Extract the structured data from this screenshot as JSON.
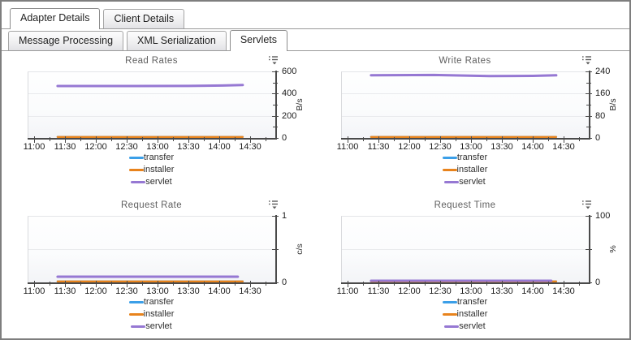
{
  "tabs": {
    "primary": [
      {
        "label": "Adapter Details",
        "active": true
      },
      {
        "label": "Client Details",
        "active": false
      }
    ],
    "secondary": [
      {
        "label": "Message Processing",
        "active": false
      },
      {
        "label": "XML Serialization",
        "active": false
      },
      {
        "label": "Servlets",
        "active": true
      }
    ]
  },
  "colors": {
    "transfer": "#3b9fe8",
    "installer": "#e8831c",
    "servlet": "#9678d3",
    "axis": "#4a4a4a",
    "grid": "#e9eaed"
  },
  "icons": {
    "chart_menu": "legend-menu-with-collapse-arrow"
  },
  "x_axis": {
    "tick_labels": [
      "11:00",
      "11:30",
      "12:00",
      "12:30",
      "13:00",
      "13:30",
      "14:00",
      "14:30"
    ]
  },
  "chart_data": [
    {
      "type": "line",
      "title": "Read Rates",
      "ylabel": "B/s",
      "ylim": [
        0,
        600
      ],
      "y_ticks": [
        {
          "v": 0,
          "label": "0"
        },
        {
          "v": 100,
          "label": ""
        },
        {
          "v": 200,
          "label": "200"
        },
        {
          "v": 300,
          "label": ""
        },
        {
          "v": 400,
          "label": "400"
        },
        {
          "v": 500,
          "label": ""
        },
        {
          "v": 600,
          "label": "600"
        }
      ],
      "x_tick_labels": [
        "11:00",
        "11:30",
        "12:00",
        "12:30",
        "13:00",
        "13:30",
        "14:00",
        "14:30"
      ],
      "series": [
        {
          "name": "transfer",
          "color": "#3b9fe8",
          "points": [
            [
              11.38,
              1
            ],
            [
              14.38,
              1
            ]
          ]
        },
        {
          "name": "installer",
          "color": "#e8831c",
          "points": [
            [
              11.38,
              3
            ],
            [
              14.38,
              3
            ]
          ]
        },
        {
          "name": "servlet",
          "color": "#9678d3",
          "points": [
            [
              11.38,
              468
            ],
            [
              12.6,
              468
            ],
            [
              13.5,
              469
            ],
            [
              14.05,
              473
            ],
            [
              14.38,
              478
            ]
          ]
        }
      ]
    },
    {
      "type": "line",
      "title": "Write Rates",
      "ylabel": "B/s",
      "ylim": [
        0,
        240
      ],
      "y_ticks": [
        {
          "v": 0,
          "label": "0"
        },
        {
          "v": 40,
          "label": ""
        },
        {
          "v": 80,
          "label": "80"
        },
        {
          "v": 120,
          "label": ""
        },
        {
          "v": 160,
          "label": "160"
        },
        {
          "v": 200,
          "label": ""
        },
        {
          "v": 240,
          "label": "240"
        }
      ],
      "x_tick_labels": [
        "11:00",
        "11:30",
        "12:00",
        "12:30",
        "13:00",
        "13:30",
        "14:00",
        "14:30"
      ],
      "series": [
        {
          "name": "transfer",
          "color": "#3b9fe8",
          "points": [
            [
              11.38,
              0.6
            ],
            [
              14.38,
              0.6
            ]
          ]
        },
        {
          "name": "installer",
          "color": "#e8831c",
          "points": [
            [
              11.38,
              1.5
            ],
            [
              14.38,
              1.5
            ]
          ]
        },
        {
          "name": "servlet",
          "color": "#9678d3",
          "points": [
            [
              11.38,
              226
            ],
            [
              12.4,
              227
            ],
            [
              13.3,
              223
            ],
            [
              14.0,
              224
            ],
            [
              14.38,
              226
            ]
          ]
        }
      ]
    },
    {
      "type": "line",
      "title": "Request Rate",
      "ylabel": "c/s",
      "ylim": [
        0,
        1
      ],
      "y_ticks": [
        {
          "v": 0,
          "label": "0"
        },
        {
          "v": 0.5,
          "label": ""
        },
        {
          "v": 1,
          "label": "1"
        }
      ],
      "x_tick_labels": [
        "11:00",
        "11:30",
        "12:00",
        "12:30",
        "13:00",
        "13:30",
        "14:00",
        "14:30"
      ],
      "series": [
        {
          "name": "transfer",
          "color": "#3b9fe8",
          "points": [
            [
              11.38,
              0.012
            ],
            [
              14.38,
              0.012
            ]
          ]
        },
        {
          "name": "installer",
          "color": "#e8831c",
          "points": [
            [
              11.38,
              0.012
            ],
            [
              14.38,
              0.012
            ]
          ]
        },
        {
          "name": "servlet",
          "color": "#9678d3",
          "points": [
            [
              11.38,
              0.085
            ],
            [
              14.3,
              0.085
            ]
          ]
        }
      ]
    },
    {
      "type": "line",
      "title": "Request Time",
      "ylabel": "%",
      "ylim": [
        0,
        100
      ],
      "y_ticks": [
        {
          "v": 0,
          "label": "0"
        },
        {
          "v": 50,
          "label": ""
        },
        {
          "v": 100,
          "label": "100"
        }
      ],
      "x_tick_labels": [
        "11:00",
        "11:30",
        "12:00",
        "12:30",
        "13:00",
        "13:30",
        "14:00",
        "14:30"
      ],
      "series": [
        {
          "name": "transfer",
          "color": "#3b9fe8",
          "points": [
            [
              11.38,
              1
            ],
            [
              14.38,
              1
            ]
          ]
        },
        {
          "name": "installer",
          "color": "#e8831c",
          "points": [
            [
              11.38,
              1.2
            ],
            [
              14.38,
              1.2
            ]
          ]
        },
        {
          "name": "servlet",
          "color": "#9678d3",
          "points": [
            [
              11.38,
              2.2
            ],
            [
              14.3,
              2.2
            ]
          ]
        }
      ]
    }
  ]
}
